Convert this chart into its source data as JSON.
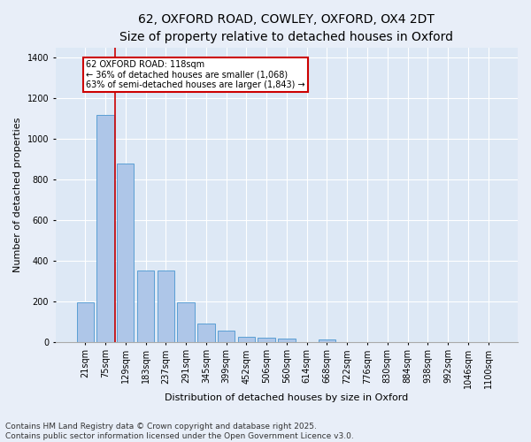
{
  "title_line1": "62, OXFORD ROAD, COWLEY, OXFORD, OX4 2DT",
  "title_line2": "Size of property relative to detached houses in Oxford",
  "xlabel": "Distribution of detached houses by size in Oxford",
  "ylabel": "Number of detached properties",
  "categories": [
    "21sqm",
    "75sqm",
    "129sqm",
    "183sqm",
    "237sqm",
    "291sqm",
    "345sqm",
    "399sqm",
    "452sqm",
    "506sqm",
    "560sqm",
    "614sqm",
    "668sqm",
    "722sqm",
    "776sqm",
    "830sqm",
    "884sqm",
    "938sqm",
    "992sqm",
    "1046sqm",
    "1100sqm"
  ],
  "values": [
    195,
    1120,
    880,
    350,
    350,
    195,
    90,
    55,
    25,
    20,
    15,
    0,
    10,
    0,
    0,
    0,
    0,
    0,
    0,
    0,
    0
  ],
  "bar_color": "#aec6e8",
  "bar_edge_color": "#5a9fd4",
  "vline_x_index": 1,
  "vline_color": "#cc0000",
  "annotation_text": "62 OXFORD ROAD: 118sqm\n← 36% of detached houses are smaller (1,068)\n63% of semi-detached houses are larger (1,843) →",
  "annotation_box_color": "#cc0000",
  "ylim": [
    0,
    1450
  ],
  "yticks": [
    0,
    200,
    400,
    600,
    800,
    1000,
    1200,
    1400
  ],
  "bg_color": "#dde8f5",
  "grid_color": "#ffffff",
  "footer_line1": "Contains HM Land Registry data © Crown copyright and database right 2025.",
  "footer_line2": "Contains public sector information licensed under the Open Government Licence v3.0.",
  "title_fontsize": 10,
  "subtitle_fontsize": 9,
  "axis_label_fontsize": 8,
  "tick_fontsize": 7,
  "footer_fontsize": 6.5,
  "fig_bg_color": "#e8eef8"
}
